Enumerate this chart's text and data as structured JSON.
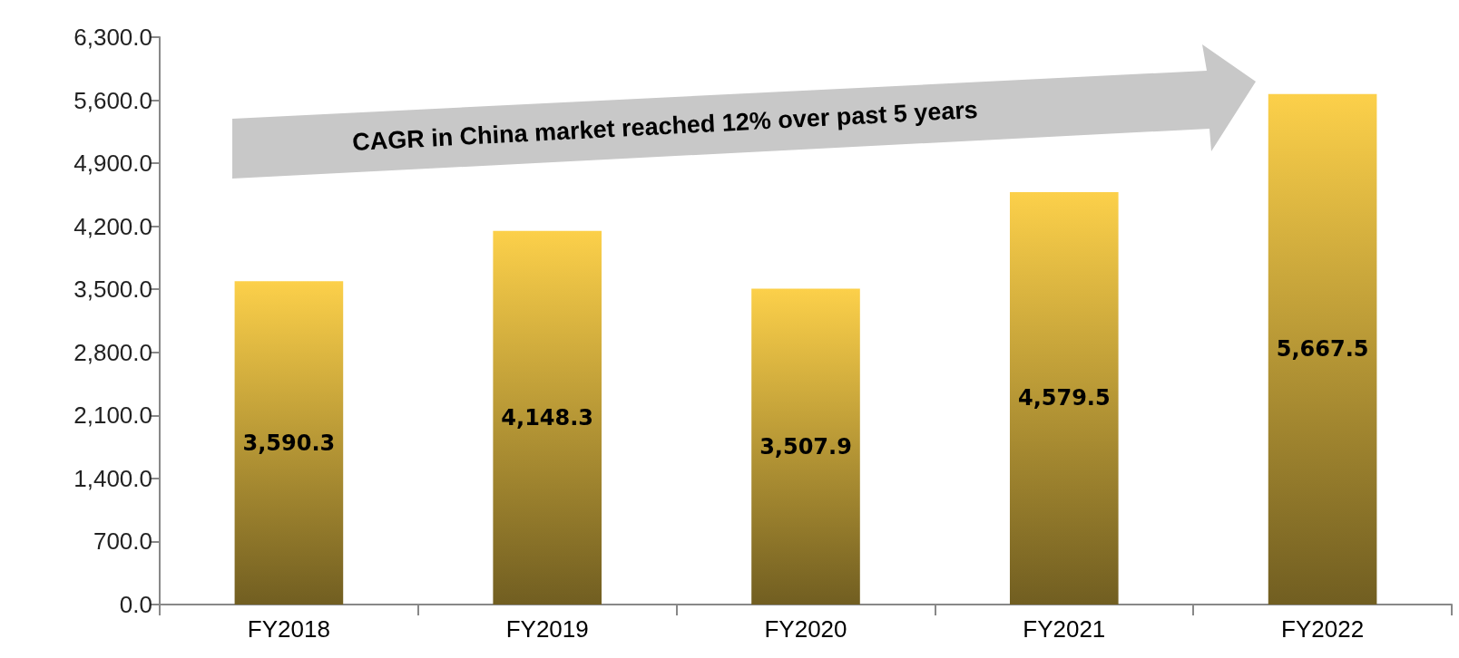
{
  "chart_data": {
    "type": "bar",
    "categories": [
      "FY2018",
      "FY2019",
      "FY2020",
      "FY2021",
      "FY2022"
    ],
    "values": [
      3590.3,
      4148.3,
      3507.9,
      4579.5,
      5667.5
    ],
    "value_labels": [
      "3,590.3",
      "4,148.3",
      "3,507.9",
      "4,579.5",
      "5,667.5"
    ],
    "color": "#fcd04a",
    "ylim": [
      0,
      6300
    ],
    "yticks": [
      {
        "value": 0,
        "label": "0.0"
      },
      {
        "value": 700,
        "label": "700.0"
      },
      {
        "value": 1400,
        "label": "1,400.0"
      },
      {
        "value": 2100,
        "label": "2,100.0"
      },
      {
        "value": 2800,
        "label": "2,800.0"
      },
      {
        "value": 3500,
        "label": "3,500.0"
      },
      {
        "value": 4200,
        "label": "4,200.0"
      },
      {
        "value": 4900,
        "label": "4,900.0"
      },
      {
        "value": 5600,
        "label": "5,600.0"
      },
      {
        "value": 6300,
        "label": "6,300.0"
      }
    ],
    "annotations": [
      "CAGR in China market reached 12% over past 5 years"
    ],
    "grid": false
  }
}
